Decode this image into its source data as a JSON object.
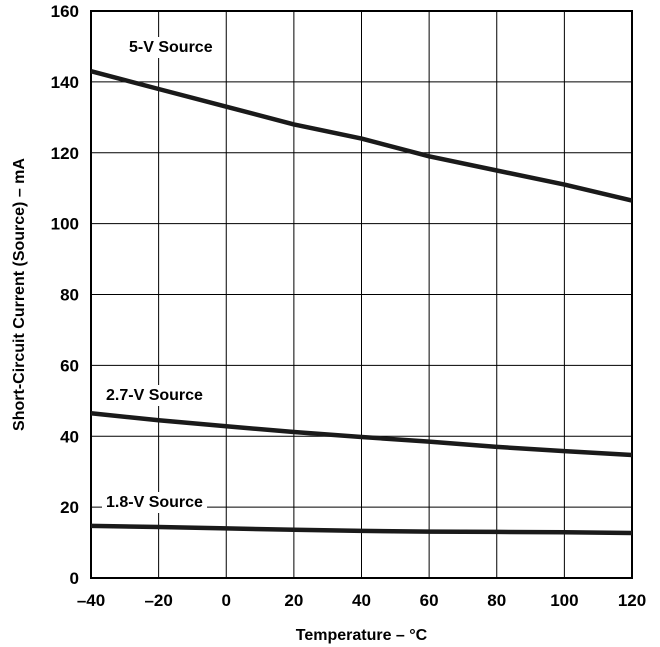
{
  "chart_data": {
    "type": "line",
    "title": "",
    "xlabel": "Temperature – °C",
    "ylabel": "Short-Circuit Current (Source) – mA",
    "xlim": [
      -40,
      120
    ],
    "ylim": [
      0,
      160
    ],
    "xticks": [
      -40,
      -20,
      0,
      20,
      40,
      60,
      80,
      100,
      120
    ],
    "yticks": [
      0,
      20,
      40,
      60,
      80,
      100,
      120,
      140,
      160
    ],
    "xtick_labels": [
      "–40",
      "–20",
      "0",
      "20",
      "40",
      "60",
      "80",
      "100",
      "120"
    ],
    "ytick_labels": [
      "0",
      "20",
      "40",
      "60",
      "80",
      "100",
      "120",
      "140",
      "160"
    ],
    "grid": true,
    "legend": "none",
    "line_color": "#1a1a1a",
    "series": [
      {
        "name": "5-V Source",
        "x": [
          -40,
          -20,
          0,
          20,
          40,
          60,
          80,
          100,
          120
        ],
        "values": [
          143,
          138,
          133,
          128,
          124,
          119,
          115,
          111,
          106.5
        ]
      },
      {
        "name": "2.7-V Source",
        "x": [
          -40,
          -20,
          0,
          20,
          40,
          60,
          80,
          100,
          120
        ],
        "values": [
          46.5,
          44.5,
          42.8,
          41.2,
          39.8,
          38.5,
          37.0,
          35.8,
          34.7
        ]
      },
      {
        "name": "1.8-V Source",
        "x": [
          -40,
          -20,
          0,
          20,
          40,
          60,
          80,
          100,
          120
        ],
        "values": [
          14.7,
          14.4,
          14.0,
          13.6,
          13.3,
          13.1,
          13.0,
          12.9,
          12.7
        ]
      }
    ]
  }
}
